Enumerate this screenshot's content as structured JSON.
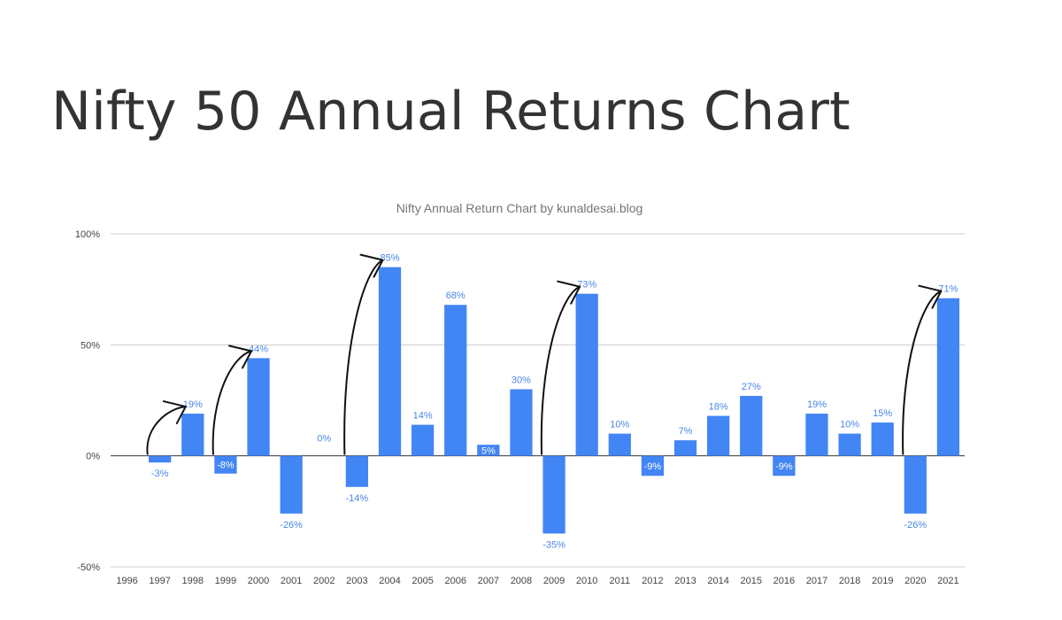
{
  "slide": {
    "title": "Nifty 50 Annual Returns Chart"
  },
  "chart_data": {
    "type": "bar",
    "title": "Nifty Annual Return Chart by kunaldesai.blog",
    "xlabel": "",
    "ylabel": "",
    "ylim": [
      -50,
      100
    ],
    "yticks": [
      -50,
      0,
      50,
      100
    ],
    "ytick_labels": [
      "-50%",
      "0%",
      "50%",
      "100%"
    ],
    "grid": true,
    "legend": "none",
    "bar_color": "#4285f4",
    "label_color": "#4a86e8",
    "categories": [
      "1996",
      "1997",
      "1998",
      "1999",
      "2000",
      "2001",
      "2002",
      "2003",
      "2004",
      "2005",
      "2006",
      "2007",
      "2008",
      "2009",
      "2010",
      "2011",
      "2012",
      "2013",
      "2014",
      "2015",
      "2016",
      "2017",
      "2018",
      "2019",
      "2020",
      "2021"
    ],
    "values": [
      null,
      -3,
      19,
      -8,
      44,
      -26,
      0,
      -14,
      85,
      14,
      68,
      5,
      30,
      -35,
      73,
      10,
      -9,
      7,
      18,
      27,
      -9,
      19,
      10,
      15,
      -26,
      71
    ],
    "data_labels": [
      "",
      "-3%",
      "19%",
      "-8%",
      "44%",
      "-26%",
      "0%",
      "-14%",
      "85%",
      "14%",
      "68%",
      "5%",
      "30%",
      "-35%",
      "73%",
      "10%",
      "-9%",
      "7%",
      "18%",
      "27%",
      "-9%",
      "19%",
      "10%",
      "15%",
      "-26%",
      "71%"
    ],
    "annotations": {
      "type": "hand-drawn arrows",
      "color": "#111111",
      "from_years": [
        "1997",
        "1999",
        "2003",
        "2009",
        "2020"
      ],
      "to_years": [
        "1998",
        "2000",
        "2004",
        "2010",
        "2021"
      ]
    }
  }
}
